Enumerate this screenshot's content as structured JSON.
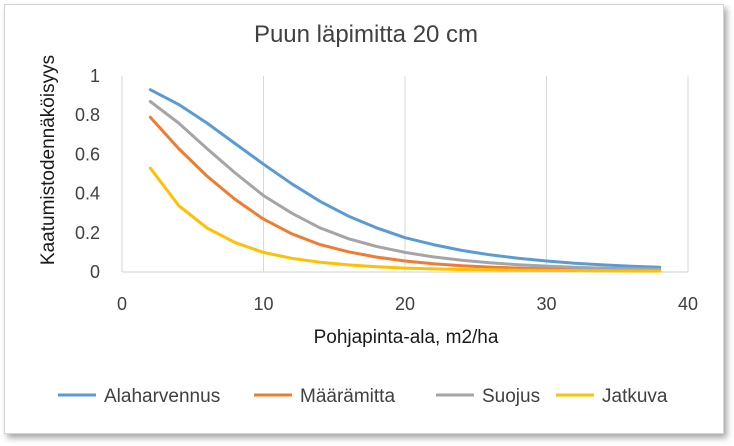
{
  "chart_data": {
    "type": "line",
    "title": "Puun läpimitta 20 cm",
    "xlabel": "Pohjapinta-ala, m2/ha",
    "ylabel": "Kaatumistodennäköisyys",
    "xlim": [
      0,
      40
    ],
    "ylim": [
      0,
      1
    ],
    "xticks": [
      0,
      10,
      20,
      30,
      40
    ],
    "yticks": [
      0,
      0.2,
      0.4,
      0.6,
      0.8,
      1
    ],
    "xtick_labels": [
      "0",
      "10",
      "20",
      "30",
      "40"
    ],
    "ytick_labels": [
      "0",
      "0.2",
      "0.4",
      "0.6",
      "0.8",
      "1"
    ],
    "grid": "vertical",
    "legend_position": "bottom",
    "x": [
      2,
      4,
      6,
      8,
      10,
      12,
      14,
      16,
      18,
      20,
      22,
      24,
      26,
      28,
      30,
      32,
      34,
      36,
      38
    ],
    "series": [
      {
        "name": "Alaharvennus",
        "color": "#5b9bd5",
        "values": [
          0.93,
          0.855,
          0.76,
          0.655,
          0.55,
          0.45,
          0.36,
          0.285,
          0.225,
          0.175,
          0.14,
          0.11,
          0.088,
          0.07,
          0.056,
          0.045,
          0.036,
          0.029,
          0.024
        ]
      },
      {
        "name": "Määrämitta",
        "color": "#ed7d31",
        "values": [
          0.79,
          0.63,
          0.49,
          0.37,
          0.27,
          0.195,
          0.14,
          0.103,
          0.076,
          0.056,
          0.042,
          0.032,
          0.025,
          0.02,
          0.016,
          0.013,
          0.011,
          0.009,
          0.008
        ]
      },
      {
        "name": "Suojus",
        "color": "#a5a5a5",
        "values": [
          0.87,
          0.76,
          0.63,
          0.505,
          0.39,
          0.3,
          0.225,
          0.17,
          0.13,
          0.1,
          0.077,
          0.06,
          0.047,
          0.037,
          0.03,
          0.024,
          0.02,
          0.017,
          0.014
        ]
      },
      {
        "name": "Jatkuva",
        "color": "#ffc000",
        "values": [
          0.53,
          0.34,
          0.225,
          0.15,
          0.1,
          0.07,
          0.05,
          0.036,
          0.027,
          0.02,
          0.016,
          0.013,
          0.011,
          0.009,
          0.008,
          0.007,
          0.006,
          0.005,
          0.005
        ]
      }
    ],
    "axis_color": "#d9d9d9",
    "grid_color": "#d9d9d9"
  }
}
